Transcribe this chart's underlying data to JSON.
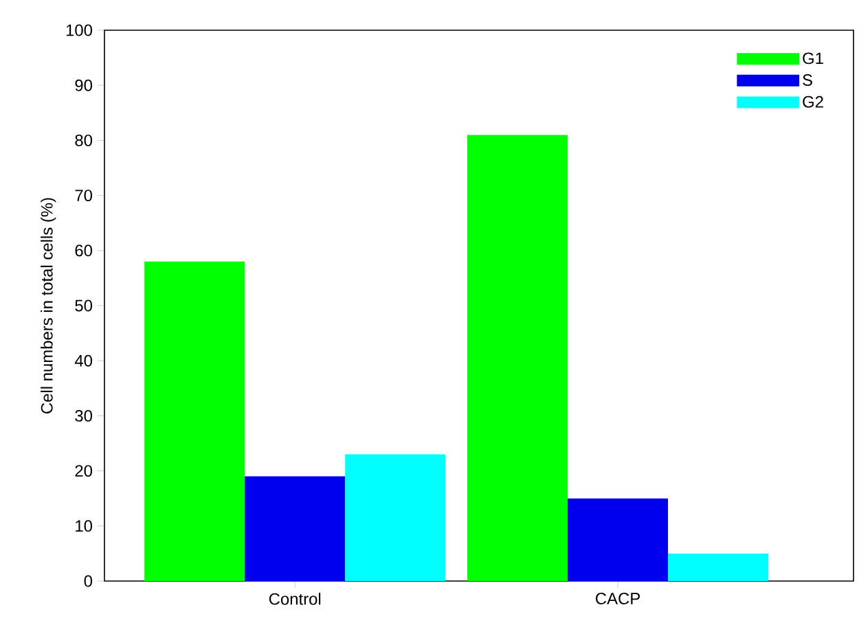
{
  "chart_data": {
    "type": "bar",
    "ylabel": "Cell numbers in total cells (%)",
    "categories": [
      "Control",
      "CACP"
    ],
    "series": [
      {
        "name": "G1",
        "color": "#00ff00",
        "values": [
          58,
          81
        ]
      },
      {
        "name": "S",
        "color": "#0000ee",
        "values": [
          19,
          15
        ]
      },
      {
        "name": "G2",
        "color": "#00ffff",
        "values": [
          23,
          5
        ]
      }
    ],
    "ylim": [
      0,
      100
    ],
    "yticks": [
      0,
      10,
      20,
      30,
      40,
      50,
      60,
      70,
      80,
      90,
      100
    ],
    "legend": "top right"
  }
}
